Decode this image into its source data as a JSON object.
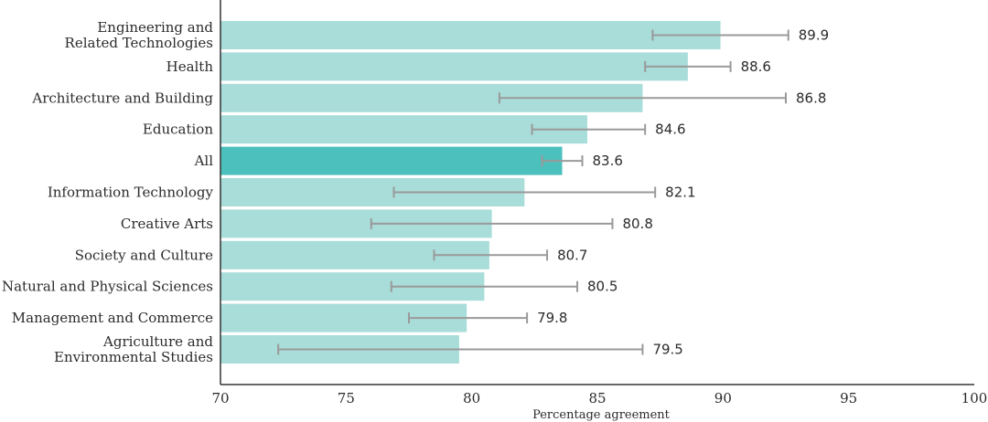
{
  "chart_data": {
    "type": "bar",
    "orientation": "horizontal",
    "categories": [
      [
        "Engineering and",
        "Related Technologies"
      ],
      [
        "Health"
      ],
      [
        "Architecture and Building"
      ],
      [
        "Education"
      ],
      [
        "All"
      ],
      [
        "Information Technology"
      ],
      [
        "Creative Arts"
      ],
      [
        "Society and Culture"
      ],
      [
        "Natural and Physical Sciences"
      ],
      [
        "Management and Commerce"
      ],
      [
        "Agriculture and",
        "Environmental Studies"
      ]
    ],
    "values": [
      89.9,
      88.6,
      86.8,
      84.6,
      83.6,
      82.1,
      80.8,
      80.7,
      80.5,
      79.8,
      79.5
    ],
    "value_labels": [
      "89.9",
      "88.6",
      "86.8",
      "84.6",
      "83.6",
      "82.1",
      "80.8",
      "80.7",
      "80.5",
      "79.8",
      "79.5"
    ],
    "error_low": [
      87.2,
      86.9,
      81.1,
      82.4,
      82.8,
      76.9,
      76.0,
      78.5,
      76.8,
      77.5,
      72.3
    ],
    "error_high": [
      92.6,
      90.3,
      92.5,
      86.9,
      84.4,
      87.3,
      85.6,
      83.0,
      84.2,
      82.2,
      86.8
    ],
    "highlight_index": 4,
    "xlim": [
      70,
      100
    ],
    "xticks": [
      "70",
      "75",
      "80",
      "85",
      "90",
      "95",
      "100"
    ],
    "xlabel": "Percentage agreement",
    "ylabel": "",
    "title": "",
    "grid": false,
    "colors": {
      "bar": "#a8ddd9",
      "highlight_bar": "#4cc0bd",
      "error_bar": "#9a9a9a",
      "axis": "#333333"
    }
  }
}
